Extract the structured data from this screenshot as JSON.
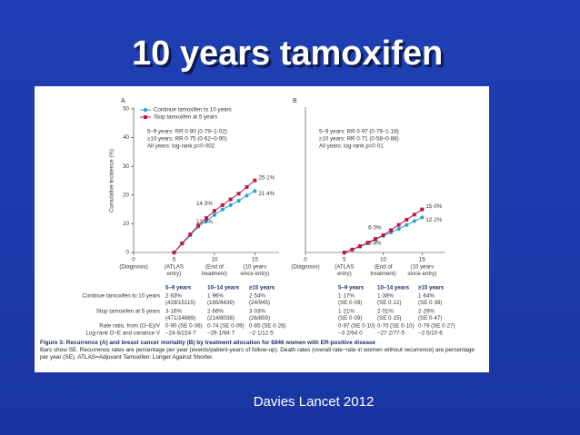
{
  "slide": {
    "title": "10 years tamoxifen",
    "caption": "Davies Lancet 2012"
  },
  "figure": {
    "caption_title": "Figure 3: Recurrence (A) and breast cancer mortality (B) by treatment allocation for 6846 women with ER-positive disease",
    "caption_text": "Bars show SE. Recurrence rates are percentage per year (events/patient-years of follow-up). Death rates (overall rate−rate in women without recurrence) are percentage per year (SE). ATLAS=Adjuvant Tamoxifen: Longer Against Shorter.",
    "tables": [
      {
        "columns": [
          "5–9 years",
          "10–14 years",
          "≥15 years"
        ],
        "rows": [
          {
            "label": "Continue tamoxifen to 10 years",
            "cells": [
              [
                "2·83%",
                "(428/15115)"
              ],
              [
                "1·96%",
                "(165/8439)"
              ],
              [
                "2·54%",
                "(24/945)"
              ]
            ]
          },
          {
            "label": "Stop tamoxifen at 5 years",
            "cells": [
              [
                "3·16%",
                "(471/14889)"
              ],
              [
                "2·66%",
                "(214/8038)"
              ],
              [
                "3·03%",
                "(26/859)"
              ]
            ]
          },
          {
            "label": "Rate ratio, from (O–E)/V",
            "cells": [
              [
                "0·90 (SE 0·06)"
              ],
              [
                "0·74 (SE 0·09)"
              ],
              [
                "0·85 (SE 0·26)"
              ]
            ]
          },
          {
            "label": "Log-rank O–E and variance V",
            "cells": [
              [
                "−24·8/224·7"
              ],
              [
                "−29·1/94·7"
              ],
              [
                "−2·1/12·5"
              ]
            ]
          }
        ]
      },
      {
        "columns": [
          "5–9 years",
          "10–14 years",
          "≥15 years"
        ],
        "rows": [
          {
            "cells": [
              [
                "1·17%",
                "(SE 0·09)"
              ],
              [
                "1·38%",
                "(SE 0·12)"
              ],
              [
                "1·64%",
                "(SE 0·39)"
              ]
            ]
          },
          {
            "cells": [
              [
                "1·21%",
                "(SE 0·09)"
              ],
              [
                "2·01%",
                "(SE 0·15)"
              ],
              [
                "2·29%",
                "(SE 0·47)"
              ]
            ]
          },
          {
            "cells": [
              [
                "0·97 (SE 0·10)"
              ],
              [
                "0·70 (SE 0·10)"
              ],
              [
                "0·79 (SE 0·27)"
              ]
            ]
          },
          {
            "cells": [
              [
                "−3·2/94·0"
              ],
              [
                "−27·2/77·5"
              ],
              [
                "−2·5/10·6"
              ]
            ]
          }
        ]
      }
    ]
  },
  "chart_data": [
    {
      "type": "line",
      "panel": "A",
      "ylabel": "Cumulative incidence (%)",
      "annotations": [
        "5–9 years: RR 0·90 (0·79–1·02)",
        "≥10 years: RR 0·75 (0·62–0·90)",
        "All years: log-rank p=0·002"
      ],
      "x": [
        5,
        6,
        7,
        8,
        9,
        10,
        11,
        12,
        13,
        14,
        15
      ],
      "series": [
        {
          "name": "Continue tamoxifen to 10 years",
          "color": "#2a9fd6",
          "marker": "circle",
          "values": [
            0,
            3,
            6,
            9,
            11,
            13.1,
            15,
            16.5,
            18,
            19.8,
            21.4
          ],
          "value_labels": [
            null,
            null,
            null,
            null,
            null,
            "13·1%",
            null,
            null,
            null,
            null,
            "21·4%"
          ]
        },
        {
          "name": "Stop tamoxifen at 5 years",
          "color": "#c0174a",
          "marker": "square",
          "values": [
            0,
            3.2,
            6.3,
            9.4,
            12,
            14.5,
            16.5,
            18.5,
            20.5,
            22.8,
            25.1
          ],
          "value_labels": [
            null,
            null,
            null,
            null,
            null,
            "14·5%",
            null,
            null,
            null,
            null,
            "25·1%"
          ]
        }
      ],
      "xlim": [
        0,
        18
      ],
      "xticks": [
        0,
        5,
        10,
        15
      ],
      "xtick_notes": [
        [
          "(Diagnosis)"
        ],
        [
          "(ATLAS",
          "entry)"
        ],
        [
          "(End of",
          "treatment)"
        ],
        [
          "(10 years",
          "since entry)"
        ]
      ],
      "ylim": [
        0,
        50
      ],
      "yticks": [
        0,
        10,
        20,
        30,
        40,
        50
      ],
      "legend": "upper left"
    },
    {
      "type": "line",
      "panel": "B",
      "annotations": [
        "5–9 years: RR 0·97 (0·79–1·18)",
        "≥10 years: RR 0·71 (0·58–0·88)",
        "All years: log-rank p=0·01"
      ],
      "x": [
        5,
        6,
        7,
        8,
        9,
        10,
        11,
        12,
        13,
        14,
        15
      ],
      "series": [
        {
          "color": "#2a9fd6",
          "marker": "circle",
          "values": [
            0,
            1,
            2,
            3.2,
            4.5,
            5.8,
            7,
            8.2,
            9.6,
            10.9,
            12.2
          ],
          "value_labels": [
            null,
            null,
            null,
            null,
            null,
            "5·8%",
            null,
            null,
            null,
            null,
            "12·2%"
          ]
        },
        {
          "color": "#c0174a",
          "marker": "square",
          "values": [
            0,
            1,
            2.2,
            3.4,
            4.7,
            6.0,
            7.8,
            9.6,
            11.4,
            13.2,
            15.0
          ],
          "value_labels": [
            null,
            null,
            null,
            null,
            null,
            "6·0%",
            null,
            null,
            null,
            null,
            "15·0%"
          ]
        }
      ],
      "xlim": [
        0,
        18
      ],
      "xticks": [
        0,
        5,
        10,
        15
      ],
      "xtick_notes": [
        [
          "(Diagnosis)"
        ],
        [
          "(ATLAS",
          "entry)"
        ],
        [
          "(End of",
          "treatment)"
        ],
        [
          "(10 years",
          "since entry)"
        ]
      ],
      "ylim": [
        0,
        50
      ]
    }
  ]
}
